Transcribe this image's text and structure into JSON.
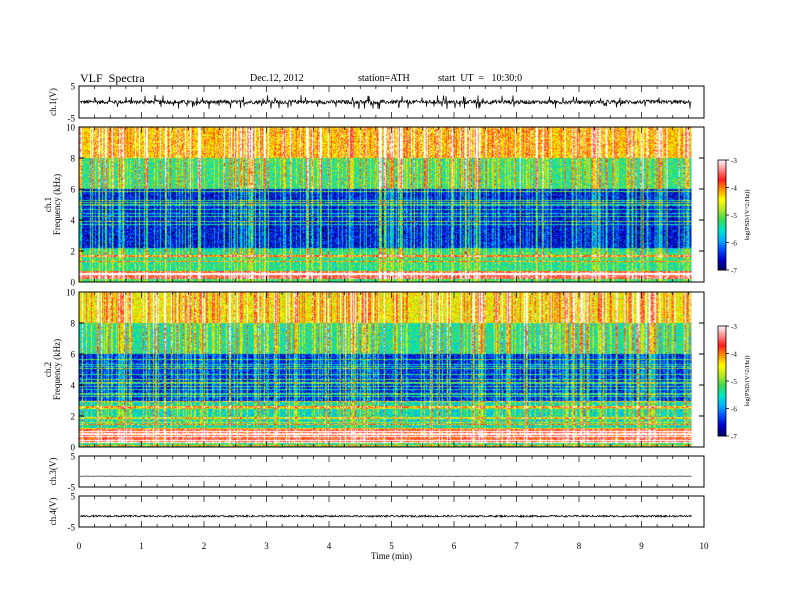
{
  "header": {
    "title": "VLF  Spectra",
    "date": "Dec.12, 2012",
    "station": "station=ATH",
    "start": "start  UT  =   10:30:0"
  },
  "colors": {
    "frame": "#000000",
    "background": "#ffffff",
    "colormap": [
      "#000066",
      "#0000cc",
      "#0050ff",
      "#00b4ff",
      "#00e6c8",
      "#3cdc50",
      "#b4e628",
      "#ffff00",
      "#ff9600",
      "#ff1e1e",
      "#ff8c8c",
      "#ffffff"
    ]
  },
  "chart_data": [
    {
      "type": "line",
      "ylabel": "ch.1(V)",
      "ylim": [
        -5,
        5
      ],
      "yticks": [
        "5",
        "-5"
      ],
      "description_level": "noisy baseline near 0 V with spikes up to about +/-2 V",
      "series": [
        {
          "values_summary": {
            "mean": 0.0,
            "amplitude": 0.6,
            "spike_max": 2.2
          }
        }
      ]
    },
    {
      "type": "heatmap",
      "ylabel": "ch.1\nFrequency  (kHz)",
      "ylim": [
        0,
        10
      ],
      "yticks": [
        "0",
        "2",
        "4",
        "6",
        "8",
        "10"
      ],
      "colorbar": {
        "label": "log(PSD/(V^2/Hz))",
        "range": [
          -7,
          -3
        ],
        "ticks": [
          "-3",
          "-4",
          "-5",
          "-6",
          "-7"
        ]
      },
      "bands": [
        {
          "from_khz": 0.0,
          "to_khz": 0.25,
          "logpsd": -5.3
        },
        {
          "from_khz": 0.25,
          "to_khz": 0.7,
          "logpsd": -3.6
        },
        {
          "from_khz": 0.7,
          "to_khz": 2.0,
          "logpsd": -5.4
        },
        {
          "from_khz": 2.0,
          "to_khz": 6.0,
          "logpsd": -6.6
        },
        {
          "from_khz": 6.0,
          "to_khz": 8.0,
          "logpsd": -5.3
        },
        {
          "from_khz": 8.0,
          "to_khz": 10.0,
          "logpsd": -4.3
        }
      ]
    },
    {
      "type": "heatmap",
      "ylabel": "ch.2\nFrequency  (kHz)",
      "ylim": [
        0,
        10
      ],
      "yticks": [
        "0",
        "2",
        "4",
        "6",
        "8",
        "10"
      ],
      "colorbar": {
        "label": "log(PSD/(V^2/Hz))",
        "range": [
          -7,
          -3
        ],
        "ticks": [
          "-3",
          "-4",
          "-5",
          "-6",
          "-7"
        ]
      },
      "bands": [
        {
          "from_khz": 0.0,
          "to_khz": 0.3,
          "logpsd": -5.4
        },
        {
          "from_khz": 0.3,
          "to_khz": 1.2,
          "logpsd": -3.8
        },
        {
          "from_khz": 1.2,
          "to_khz": 3.0,
          "logpsd": -5.6
        },
        {
          "from_khz": 3.0,
          "to_khz": 6.0,
          "logpsd": -6.5
        },
        {
          "from_khz": 6.0,
          "to_khz": 8.0,
          "logpsd": -5.4
        },
        {
          "from_khz": 8.0,
          "to_khz": 10.0,
          "logpsd": -4.5
        }
      ]
    },
    {
      "type": "line",
      "ylabel": "ch.3(V)",
      "ylim": [
        -5,
        5
      ],
      "yticks": [
        "5",
        "-5"
      ],
      "series": [
        {
          "values_summary": {
            "mean": -1.5,
            "amplitude": 0.05
          }
        }
      ]
    },
    {
      "type": "line",
      "ylabel": "ch.4(V)",
      "ylim": [
        -5,
        5
      ],
      "yticks": [
        "5",
        "-5"
      ],
      "series": [
        {
          "values_summary": {
            "mean": -1.5,
            "amplitude": 0.3
          }
        }
      ]
    }
  ],
  "xaxis": {
    "label": "Time  (min)",
    "xlim": [
      0,
      10
    ],
    "ticks": [
      "0",
      "1",
      "2",
      "3",
      "4",
      "5",
      "6",
      "7",
      "8",
      "9",
      "10"
    ],
    "data_end_min": 9.8
  }
}
